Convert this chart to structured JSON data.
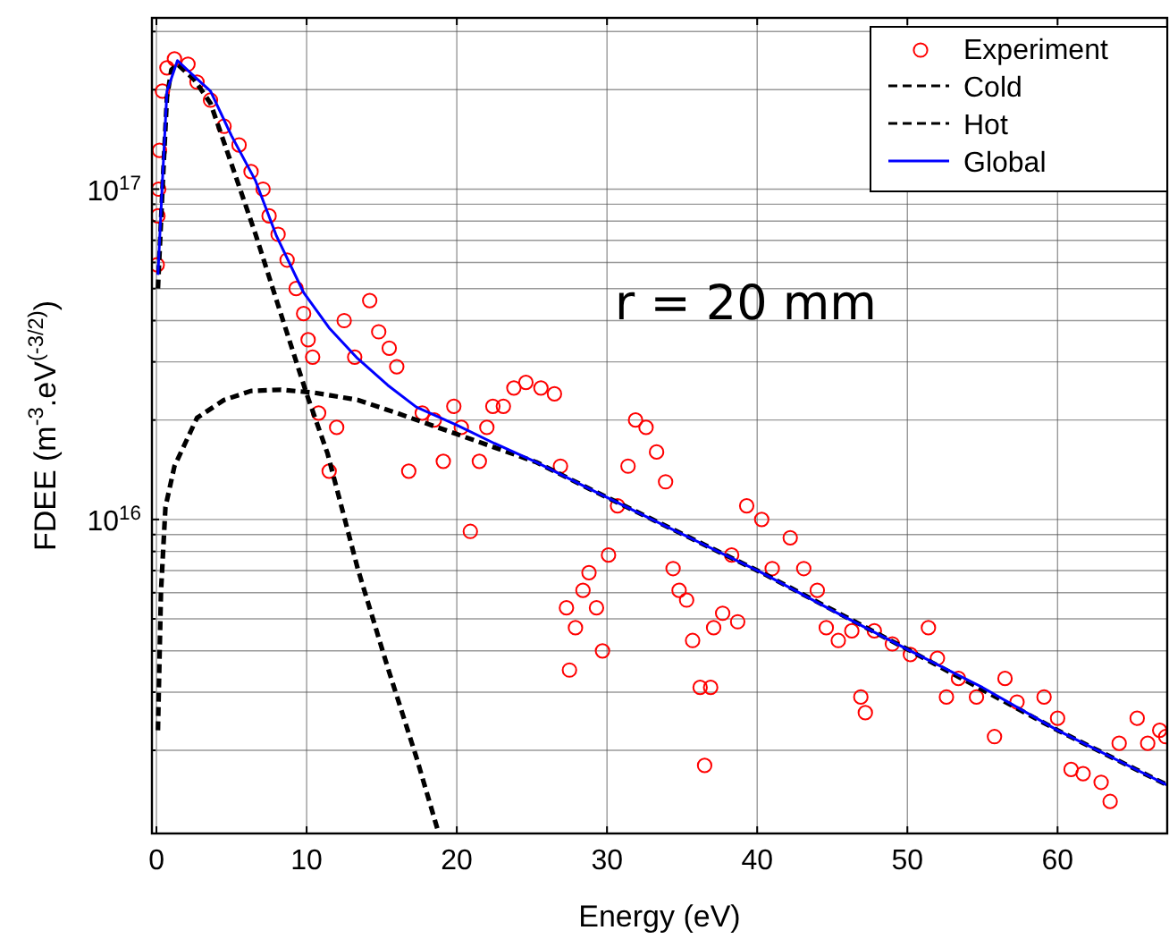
{
  "chart_data": {
    "type": "scatter",
    "xlabel": "Energy (eV)",
    "ylabel": "FDEE (m$^{-3}$.eV$^{(-3/2)}$)",
    "log": "y",
    "grid": true,
    "legend": "top right",
    "xlim": [
      -0.3,
      67.3
    ],
    "xticks": [
      0,
      10,
      20,
      30,
      40,
      50,
      60
    ],
    "ylim": [
      1120000000000000.0,
      3.3e+17
    ],
    "yticks": [
      {
        "value": 2000000000000000.0,
        "label": null
      },
      {
        "value": 3000000000000000.0,
        "label": null
      },
      {
        "value": 4000000000000000.0,
        "label": null
      },
      {
        "value": 5000000000000000.0,
        "label": null
      },
      {
        "value": 6000000000000000.0,
        "label": null
      },
      {
        "value": 7000000000000000.0,
        "label": null
      },
      {
        "value": 8000000000000000.0,
        "label": null
      },
      {
        "value": 9000000000000000.0,
        "label": null
      },
      {
        "value": 1e+16,
        "label": "10$^{16}$"
      },
      {
        "value": 2e+16,
        "label": null
      },
      {
        "value": 3e+16,
        "label": null
      },
      {
        "value": 4e+16,
        "label": null
      },
      {
        "value": 5e+16,
        "label": null
      },
      {
        "value": 6e+16,
        "label": null
      },
      {
        "value": 7e+16,
        "label": null
      },
      {
        "value": 8e+16,
        "label": null
      },
      {
        "value": 9e+16,
        "label": null
      },
      {
        "value": 1e+17,
        "label": "10$^{17}$"
      },
      {
        "value": 2e+17,
        "label": null
      },
      {
        "value": 3e+17,
        "label": null
      }
    ],
    "annotations": [
      "r = 20 mm"
    ],
    "series": [
      {
        "name": "Experiment",
        "marker": "circle",
        "color": "#ff0000",
        "x": [
          0.05,
          0.1,
          0.15,
          0.2,
          0.4,
          0.7,
          1.2,
          2.1,
          2.7,
          3.6,
          4.5,
          5.5,
          6.3,
          7.1,
          7.5,
          8.1,
          8.7,
          9.3,
          9.8,
          10.1,
          10.4,
          10.8,
          11.5,
          12.0,
          12.5,
          13.2,
          14.2,
          14.8,
          15.5,
          16.0,
          16.8,
          17.7,
          18.5,
          19.1,
          19.8,
          20.3,
          20.9,
          21.5,
          22.0,
          22.4,
          23.1,
          23.8,
          24.6,
          25.6,
          26.5,
          26.9,
          27.3,
          27.5,
          27.9,
          28.4,
          28.8,
          29.3,
          29.7,
          30.1,
          30.7,
          31.4,
          31.9,
          32.6,
          33.3,
          33.9,
          34.4,
          34.8,
          35.3,
          35.7,
          36.2,
          36.5,
          36.9,
          37.1,
          37.7,
          38.3,
          38.7,
          39.3,
          40.3,
          41.0,
          42.2,
          43.1,
          44.0,
          44.6,
          45.4,
          46.3,
          46.9,
          47.2,
          47.8,
          49.0,
          50.2,
          51.4,
          52.0,
          52.6,
          53.4,
          54.6,
          55.8,
          56.5,
          57.3,
          59.1,
          60.0,
          60.9,
          61.7,
          62.9,
          63.5,
          64.1,
          65.3,
          66.0,
          66.8,
          67.2
        ],
        "values": [
          5.9e+16,
          8.3e+16,
          1e+17,
          1.31e+17,
          1.98e+17,
          2.33e+17,
          2.48e+17,
          2.39e+17,
          2.11e+17,
          1.86e+17,
          1.55e+17,
          1.36e+17,
          1.13e+17,
          1e+17,
          8.3e+16,
          7.3e+16,
          6.1e+16,
          5e+16,
          4.2e+16,
          3.5e+16,
          3.1e+16,
          2.1e+16,
          1.4e+16,
          1.9e+16,
          4e+16,
          3.1e+16,
          4.6e+16,
          3.7e+16,
          3.3e+16,
          2.9e+16,
          1.4e+16,
          2.1e+16,
          2e+16,
          1.5e+16,
          2.2e+16,
          1.9e+16,
          9200000000000000.0,
          1.5e+16,
          1.9e+16,
          2.2e+16,
          2.2e+16,
          2.5e+16,
          2.6e+16,
          2.5e+16,
          2.4e+16,
          1.45e+16,
          5400000000000000.0,
          3500000000000000.0,
          4700000000000000.0,
          6100000000000000.0,
          6900000000000000.0,
          5400000000000000.0,
          4000000000000000.0,
          7800000000000000.0,
          1.1e+16,
          1.45e+16,
          2e+16,
          1.9e+16,
          1.6e+16,
          1.3e+16,
          7100000000000000.0,
          6100000000000000.0,
          5700000000000000.0,
          4300000000000000.0,
          3100000000000000.0,
          1800000000000000.0,
          3100000000000000.0,
          4700000000000000.0,
          5200000000000000.0,
          7800000000000000.0,
          4900000000000000.0,
          1.1e+16,
          1e+16,
          7100000000000000.0,
          8800000000000000.0,
          7100000000000000.0,
          6100000000000000.0,
          4700000000000000.0,
          4300000000000000.0,
          4600000000000000.0,
          2900000000000000.0,
          2600000000000000.0,
          4600000000000000.0,
          4200000000000000.0,
          3900000000000000.0,
          4700000000000000.0,
          3800000000000000.0,
          2900000000000000.0,
          3300000000000000.0,
          2900000000000000.0,
          2200000000000000.0,
          3300000000000000.0,
          2800000000000000.0,
          2900000000000000.0,
          2500000000000000.0,
          1750000000000000.0,
          1700000000000000.0,
          1600000000000000.0,
          1400000000000000.0,
          2100000000000000.0,
          2500000000000000.0,
          2100000000000000.0,
          2300000000000000.0,
          2200000000000000.0
        ]
      },
      {
        "name": "Cold",
        "type": "line",
        "line_style": "dashed",
        "color": "#000000",
        "x": [
          0.1,
          0.4,
          0.7,
          1.0,
          1.4,
          2.5,
          3.6,
          5.0,
          6.6,
          8.0,
          10.0,
          11.4,
          13.4,
          15.4,
          17.3,
          18.7
        ],
        "values": [
          5e+16,
          1e+17,
          1.9e+17,
          2.3e+17,
          2.39e+17,
          2.15e+17,
          1.82e+17,
          1.19e+17,
          7.3e+16,
          4.6e+16,
          2.4e+16,
          1.58e+16,
          7100000000000000.0,
          3560000000000000.0,
          1910000000000000.0,
          1160000000000000.0
        ]
      },
      {
        "name": "Hot",
        "type": "line",
        "line_style": "dashed",
        "color": "#000000",
        "x": [
          0.1,
          0.3,
          0.6,
          1.2,
          2.7,
          4.5,
          6.3,
          8.3,
          10.5,
          13.4,
          16.0,
          19.3,
          25.3,
          28.8,
          40.3,
          50.2,
          60.0,
          67.3
        ],
        "values": [
          2300000000000000.0,
          6000000000000000.0,
          1.09e+16,
          1.45e+16,
          2.03e+16,
          2.3e+16,
          2.45e+16,
          2.47e+16,
          2.42e+16,
          2.3e+16,
          2.1e+16,
          1.86e+16,
          1.49e+16,
          1.24e+16,
          6900000000000000.0,
          4000000000000000.0,
          2300000000000000.0,
          1570000000000000.0
        ]
      },
      {
        "name": "Global",
        "type": "line",
        "line_style": "solid",
        "color": "#0000ff",
        "x": [
          0.1,
          0.4,
          0.7,
          1.4,
          2.5,
          3.6,
          5.0,
          6.6,
          8.0,
          9.8,
          11.5,
          13.4,
          15.4,
          17.3,
          20.0,
          22.5,
          25.3,
          28.8,
          34.0,
          40.3,
          45.0,
          50.2,
          55.0,
          60.0,
          67.3
        ],
        "values": [
          5.5e+16,
          1.06e+17,
          1.98e+17,
          2.45e+17,
          2.2e+17,
          1.98e+17,
          1.45e+17,
          1.06e+17,
          7.2e+16,
          4.86e+16,
          3.8e+16,
          3.07e+16,
          2.55e+16,
          2.19e+16,
          1.93e+16,
          1.7e+16,
          1.49e+16,
          1.24e+16,
          9500000000000000.0,
          6900000000000000.0,
          5300000000000000.0,
          4000000000000000.0,
          3100000000000000.0,
          2300000000000000.0,
          1570000000000000.0
        ]
      }
    ]
  }
}
